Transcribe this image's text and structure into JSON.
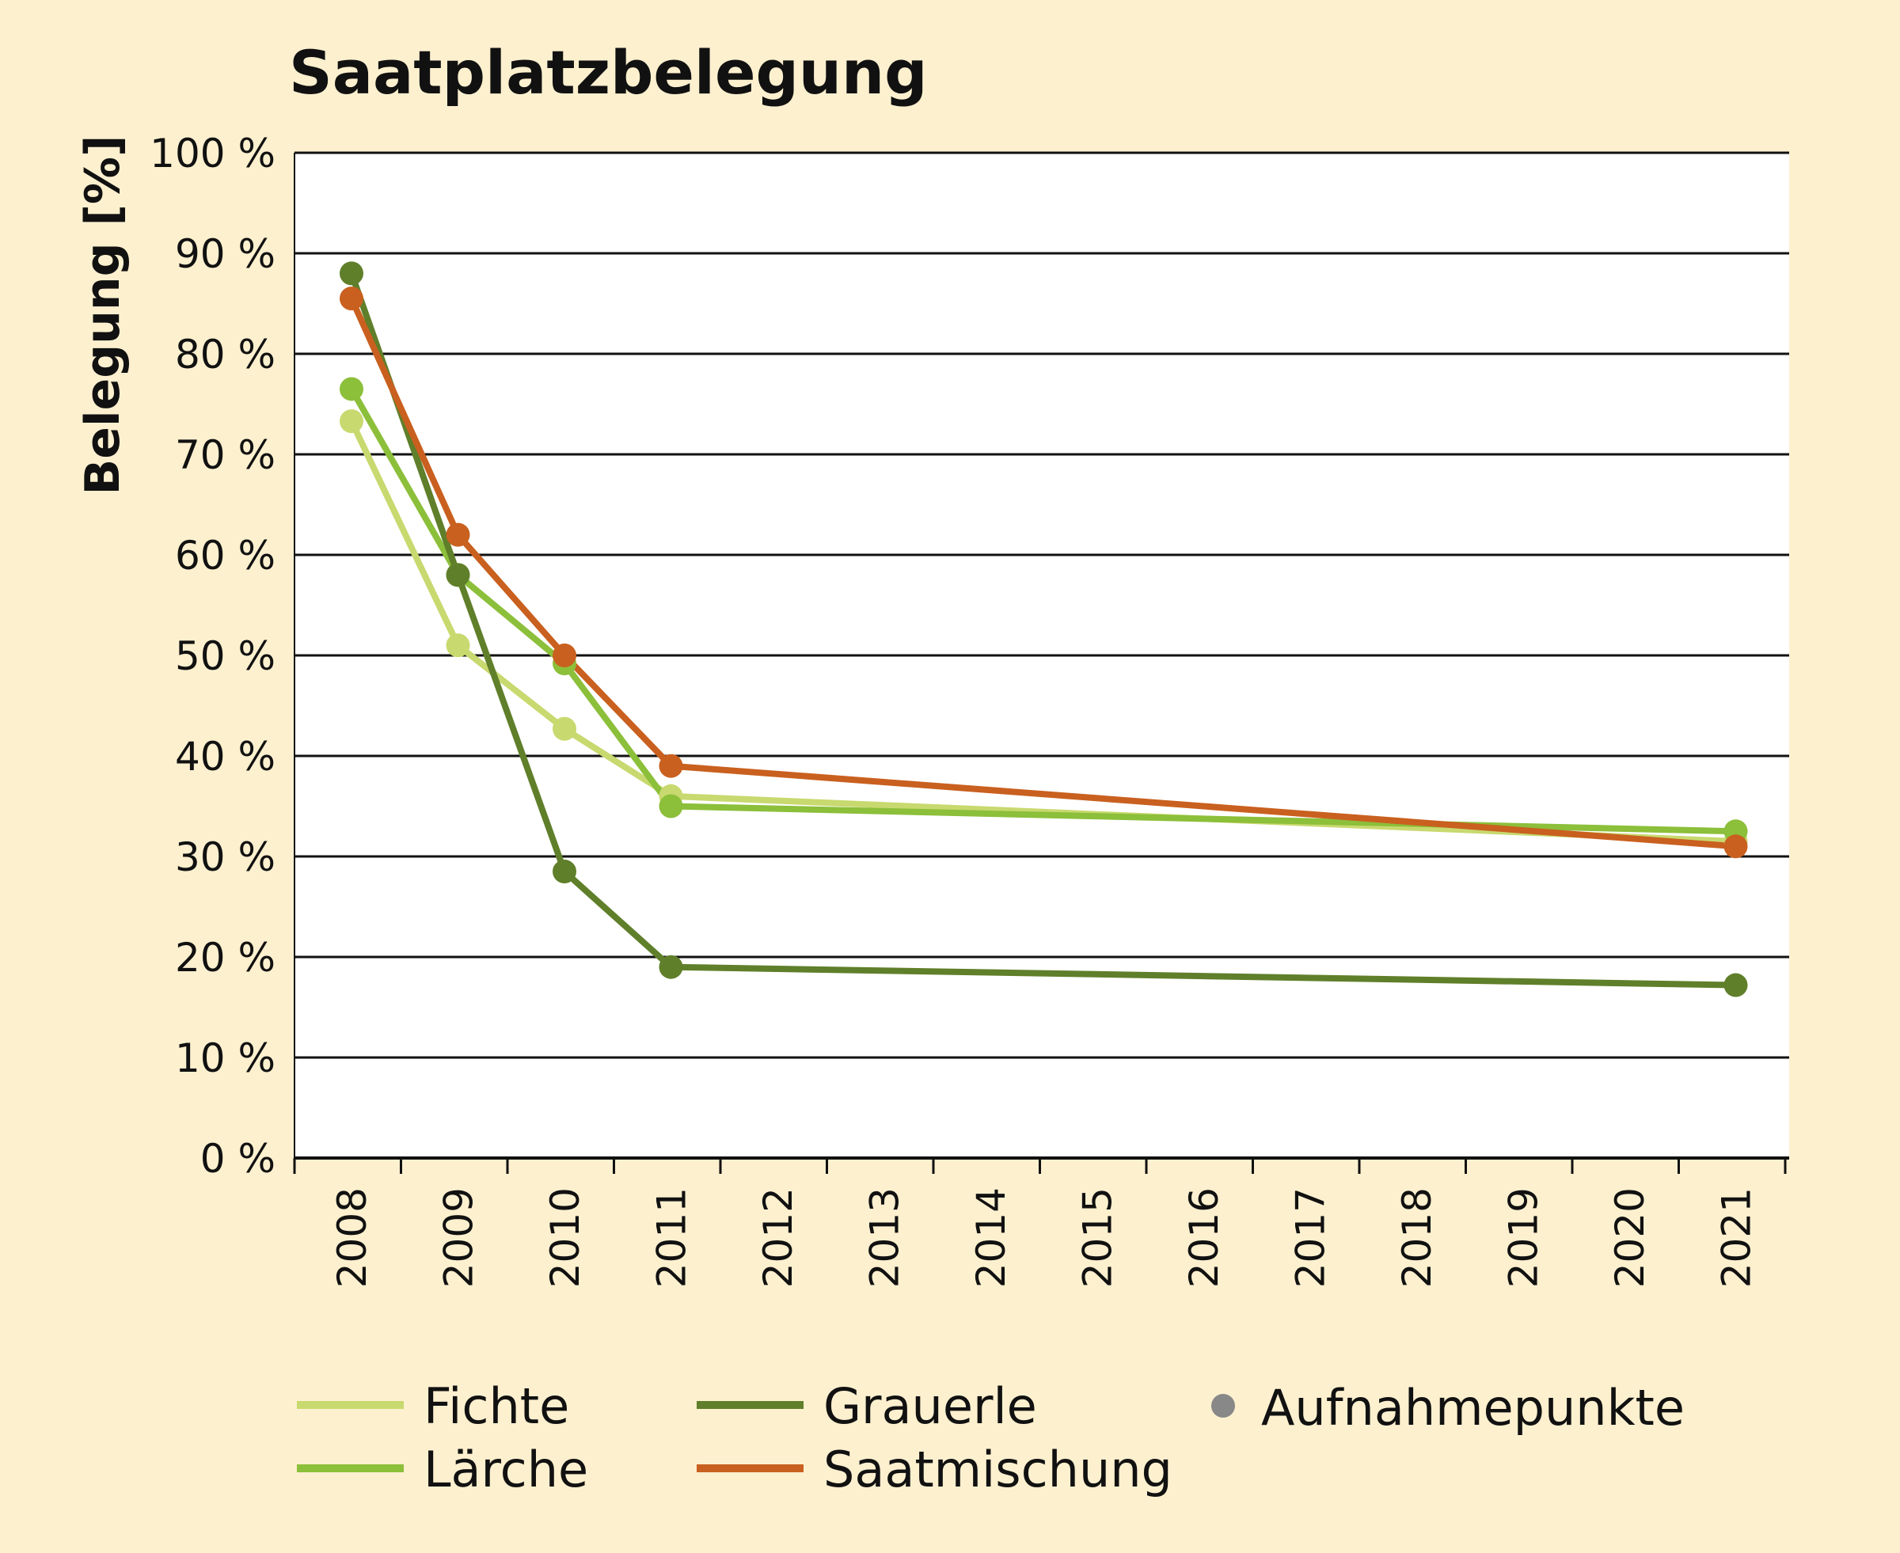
{
  "chart_data": {
    "type": "line",
    "title": "Saatplatzbelegung",
    "ylabel": "Belegung [%]",
    "xlabel": "",
    "ylim": [
      0,
      100
    ],
    "yticks": [
      "0 %",
      "10 %",
      "20 %",
      "30 %",
      "40 %",
      "50 %",
      "60 %",
      "70 %",
      "80 %",
      "90 %",
      "100 %"
    ],
    "categories": [
      "2008",
      "2009",
      "2010",
      "2011",
      "2012",
      "2013",
      "2014",
      "2015",
      "2016",
      "2017",
      "2018",
      "2019",
      "2020",
      "2021"
    ],
    "grid": true,
    "legend_position": "bottom",
    "series": [
      {
        "name": "Fichte",
        "color": "#c8d96f",
        "x": [
          "2008",
          "2009",
          "2010",
          "2011",
          "2021"
        ],
        "values": [
          73.3,
          51,
          42.7,
          36,
          31.5
        ]
      },
      {
        "name": "Lärche",
        "color": "#8cbf3a",
        "x": [
          "2008",
          "2009",
          "2010",
          "2011",
          "2021"
        ],
        "values": [
          76.5,
          58,
          49.2,
          35,
          32.5
        ]
      },
      {
        "name": "Grauerle",
        "color": "#5f7f2a",
        "x": [
          "2008",
          "2009",
          "2010",
          "2011",
          "2021"
        ],
        "values": [
          88,
          58,
          28.5,
          19,
          17.2
        ]
      },
      {
        "name": "Saatmischung",
        "color": "#c9601f",
        "x": [
          "2008",
          "2009",
          "2010",
          "2011",
          "2021"
        ],
        "values": [
          85.5,
          62,
          50,
          39,
          31
        ]
      }
    ],
    "point_legend": {
      "label": "Aufnahmepunkte",
      "color": "#888888"
    }
  }
}
